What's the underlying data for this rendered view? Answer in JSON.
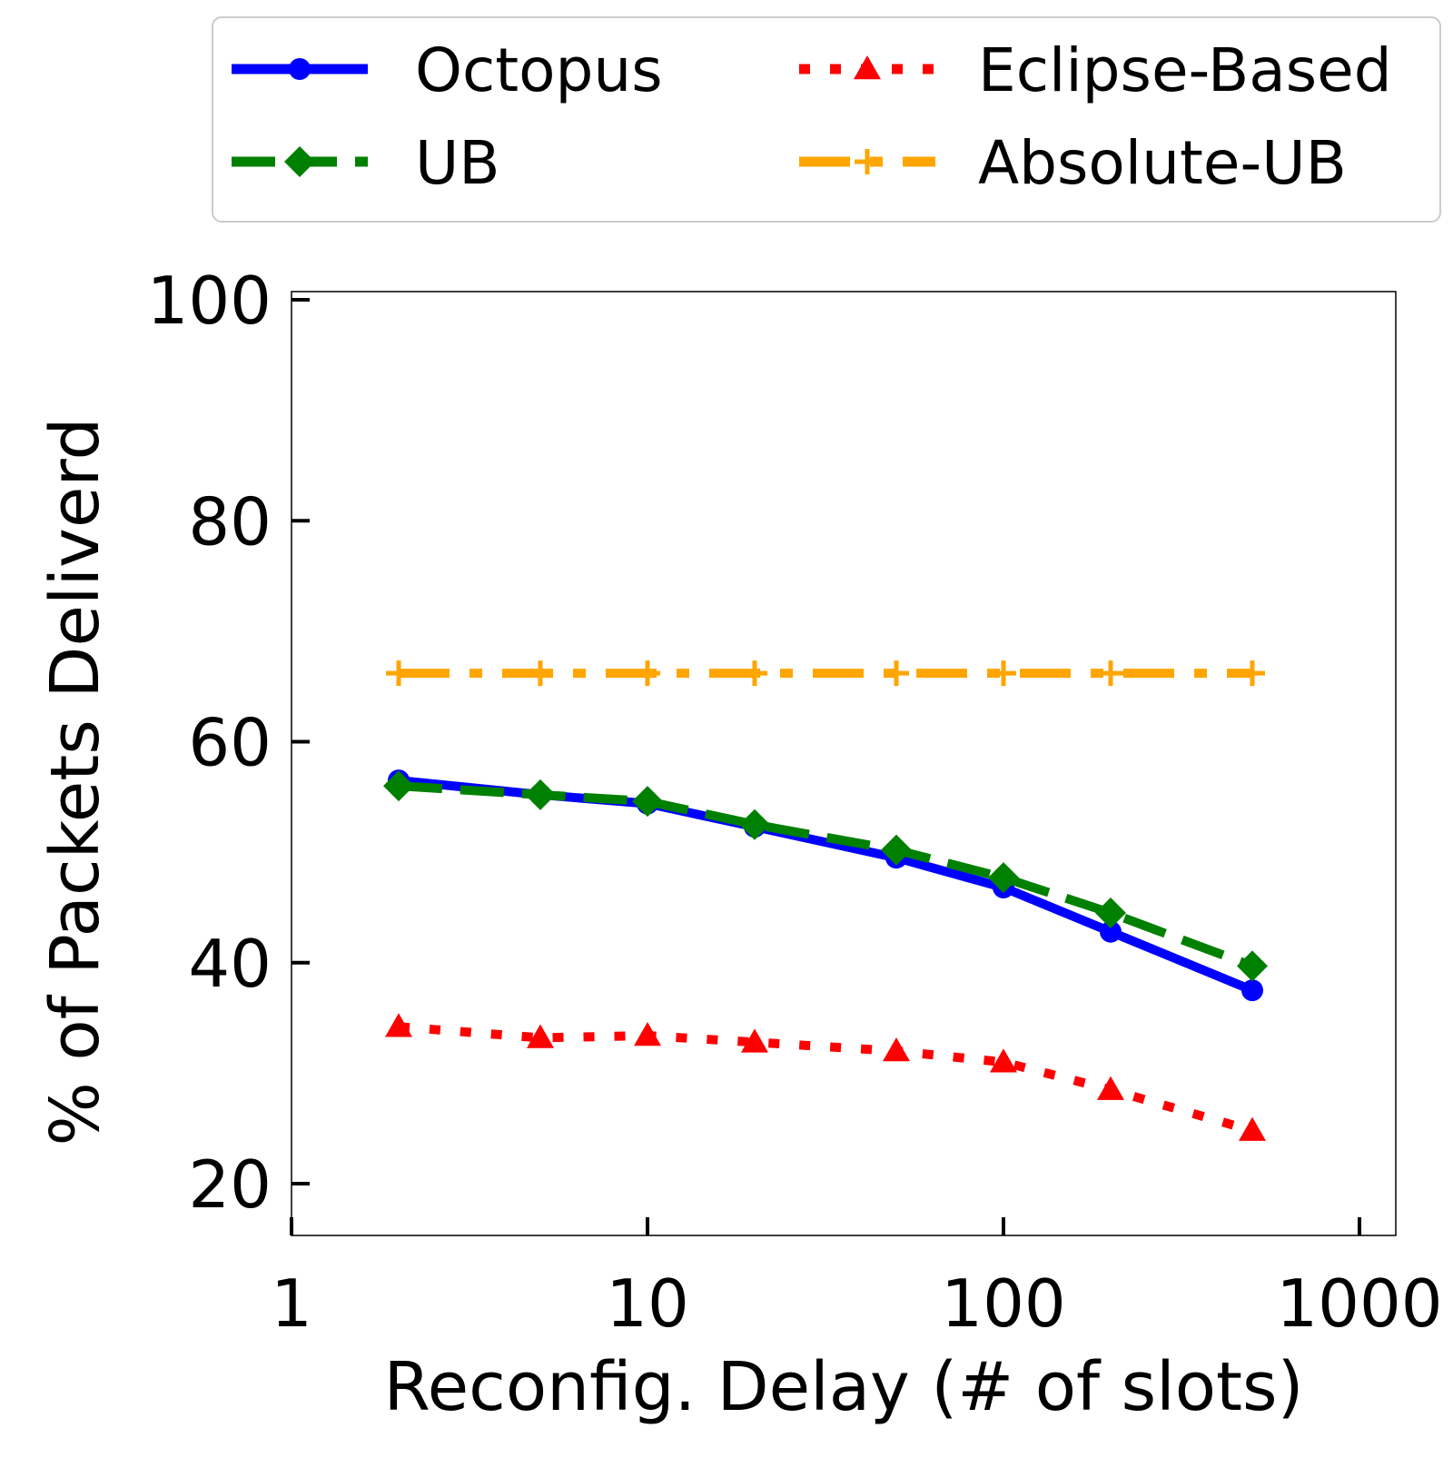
{
  "chart_data": {
    "type": "line",
    "xlabel": "Reconfig. Delay (# of slots)",
    "ylabel": "% of Packets Deliverd",
    "xscale": "log",
    "xlim": [
      1,
      1000
    ],
    "ylim": [
      15,
      101
    ],
    "xticks": [
      1,
      10,
      100,
      1000
    ],
    "xtick_labels": [
      "1",
      "10",
      "100",
      "1000"
    ],
    "yticks": [
      20,
      40,
      60,
      80,
      100
    ],
    "ytick_labels": [
      "20",
      "40",
      "60",
      "80",
      "100"
    ],
    "grid": false,
    "legend_position": "top, above plot, two columns",
    "x": [
      2,
      5,
      10,
      20,
      50,
      100,
      200,
      500
    ],
    "series": [
      {
        "name": "Octopus",
        "color": "#0000ff",
        "style": "solid",
        "marker": "circle",
        "values": [
          56.5,
          55.2,
          54.4,
          52.3,
          49.5,
          46.8,
          42.8,
          37.5
        ]
      },
      {
        "name": "UB",
        "color": "#008000",
        "style": "dashed",
        "marker": "diamond",
        "values": [
          56.0,
          55.2,
          54.6,
          52.5,
          50.2,
          47.7,
          44.5,
          39.7
        ]
      },
      {
        "name": "Eclipse-Based",
        "color": "#ff0000",
        "style": "dotted",
        "marker": "triangle",
        "values": [
          34.2,
          33.2,
          33.4,
          32.8,
          32.0,
          31.0,
          28.5,
          24.8
        ]
      },
      {
        "name": "Absolute-UB",
        "color": "#ffa500",
        "style": "dashdot",
        "marker": "plus",
        "values": [
          66.2,
          66.2,
          66.2,
          66.2,
          66.2,
          66.2,
          66.2,
          66.2
        ]
      }
    ]
  }
}
